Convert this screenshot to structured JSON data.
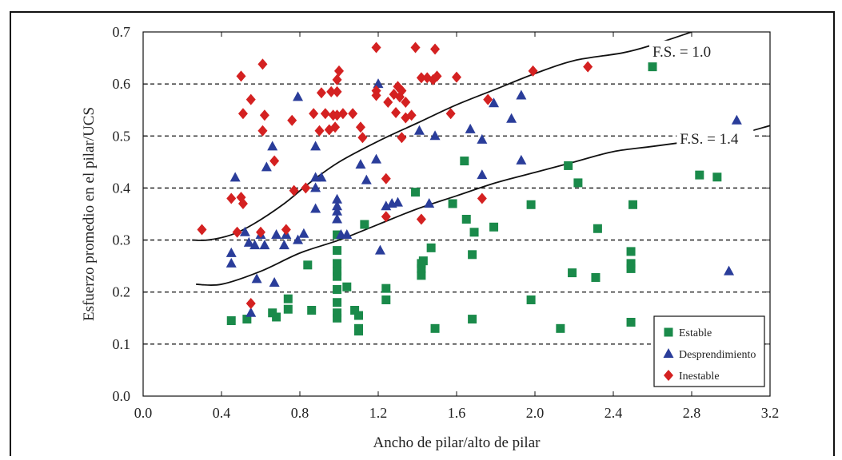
{
  "chart_data": {
    "type": "scatter",
    "xlabel": "Ancho de pilar/alto de pilar",
    "ylabel": "Esfuerzo promedio en el pilar/UCS",
    "xlim": [
      0.0,
      3.2
    ],
    "ylim": [
      0.0,
      0.7
    ],
    "xticks": [
      "0.0",
      "0.4",
      "0.8",
      "1.2",
      "1.6",
      "2.0",
      "2.4",
      "2.8",
      "3.2"
    ],
    "yticks": [
      "0.0",
      "0.1",
      "0.2",
      "0.3",
      "0.4",
      "0.5",
      "0.6",
      "0.7"
    ],
    "grid": "horizontal dashed",
    "legend_position": "bottom-right",
    "series": [
      {
        "name": "Estable",
        "marker": "square",
        "color": "#1a8a4a",
        "points": [
          [
            0.45,
            0.145
          ],
          [
            0.53,
            0.148
          ],
          [
            0.66,
            0.16
          ],
          [
            0.68,
            0.152
          ],
          [
            0.74,
            0.187
          ],
          [
            0.74,
            0.167
          ],
          [
            0.86,
            0.165
          ],
          [
            0.84,
            0.252
          ],
          [
            0.99,
            0.15
          ],
          [
            0.99,
            0.16
          ],
          [
            0.99,
            0.18
          ],
          [
            0.99,
            0.205
          ],
          [
            0.99,
            0.23
          ],
          [
            0.99,
            0.24
          ],
          [
            0.99,
            0.255
          ],
          [
            0.99,
            0.28
          ],
          [
            0.99,
            0.31
          ],
          [
            1.04,
            0.21
          ],
          [
            1.08,
            0.165
          ],
          [
            1.1,
            0.155
          ],
          [
            1.1,
            0.13
          ],
          [
            1.1,
            0.125
          ],
          [
            1.13,
            0.33
          ],
          [
            1.24,
            0.185
          ],
          [
            1.24,
            0.207
          ],
          [
            1.39,
            0.392
          ],
          [
            1.42,
            0.232
          ],
          [
            1.42,
            0.245
          ],
          [
            1.42,
            0.255
          ],
          [
            1.43,
            0.26
          ],
          [
            1.47,
            0.285
          ],
          [
            1.49,
            0.13
          ],
          [
            1.58,
            0.37
          ],
          [
            1.64,
            0.452
          ],
          [
            1.65,
            0.34
          ],
          [
            1.68,
            0.272
          ],
          [
            1.68,
            0.148
          ],
          [
            1.69,
            0.315
          ],
          [
            1.79,
            0.325
          ],
          [
            1.98,
            0.368
          ],
          [
            1.98,
            0.185
          ],
          [
            2.13,
            0.13
          ],
          [
            2.17,
            0.443
          ],
          [
            2.19,
            0.237
          ],
          [
            2.22,
            0.41
          ],
          [
            2.31,
            0.228
          ],
          [
            2.32,
            0.322
          ],
          [
            2.49,
            0.142
          ],
          [
            2.49,
            0.245
          ],
          [
            2.49,
            0.255
          ],
          [
            2.49,
            0.278
          ],
          [
            2.5,
            0.368
          ],
          [
            2.6,
            0.633
          ],
          [
            2.84,
            0.425
          ],
          [
            2.93,
            0.421
          ]
        ]
      },
      {
        "name": "Desprendimiento",
        "marker": "triangle",
        "color": "#2a3d9a",
        "points": [
          [
            0.45,
            0.255
          ],
          [
            0.45,
            0.275
          ],
          [
            0.47,
            0.42
          ],
          [
            0.52,
            0.315
          ],
          [
            0.54,
            0.295
          ],
          [
            0.55,
            0.16
          ],
          [
            0.57,
            0.29
          ],
          [
            0.58,
            0.225
          ],
          [
            0.6,
            0.31
          ],
          [
            0.62,
            0.29
          ],
          [
            0.63,
            0.44
          ],
          [
            0.66,
            0.48
          ],
          [
            0.67,
            0.218
          ],
          [
            0.68,
            0.31
          ],
          [
            0.72,
            0.29
          ],
          [
            0.73,
            0.31
          ],
          [
            0.79,
            0.3
          ],
          [
            0.79,
            0.575
          ],
          [
            0.82,
            0.312
          ],
          [
            0.88,
            0.36
          ],
          [
            0.88,
            0.4
          ],
          [
            0.88,
            0.42
          ],
          [
            0.88,
            0.48
          ],
          [
            0.91,
            0.42
          ],
          [
            0.99,
            0.34
          ],
          [
            0.99,
            0.355
          ],
          [
            0.99,
            0.365
          ],
          [
            0.99,
            0.378
          ],
          [
            1.01,
            0.31
          ],
          [
            1.04,
            0.31
          ],
          [
            1.11,
            0.445
          ],
          [
            1.14,
            0.415
          ],
          [
            1.19,
            0.455
          ],
          [
            1.2,
            0.6
          ],
          [
            1.21,
            0.28
          ],
          [
            1.24,
            0.365
          ],
          [
            1.27,
            0.37
          ],
          [
            1.3,
            0.372
          ],
          [
            1.41,
            0.51
          ],
          [
            1.46,
            0.37
          ],
          [
            1.49,
            0.5
          ],
          [
            1.67,
            0.513
          ],
          [
            1.73,
            0.425
          ],
          [
            1.73,
            0.493
          ],
          [
            1.79,
            0.563
          ],
          [
            1.88,
            0.533
          ],
          [
            1.93,
            0.578
          ],
          [
            1.93,
            0.453
          ],
          [
            2.99,
            0.24
          ],
          [
            3.03,
            0.53
          ]
        ]
      },
      {
        "name": "Inestable",
        "marker": "diamond",
        "color": "#d42121",
        "points": [
          [
            0.3,
            0.32
          ],
          [
            0.45,
            0.38
          ],
          [
            0.48,
            0.315
          ],
          [
            0.5,
            0.382
          ],
          [
            0.51,
            0.37
          ],
          [
            0.5,
            0.615
          ],
          [
            0.51,
            0.543
          ],
          [
            0.55,
            0.57
          ],
          [
            0.55,
            0.178
          ],
          [
            0.6,
            0.315
          ],
          [
            0.61,
            0.638
          ],
          [
            0.61,
            0.51
          ],
          [
            0.62,
            0.54
          ],
          [
            0.67,
            0.452
          ],
          [
            0.73,
            0.32
          ],
          [
            0.76,
            0.53
          ],
          [
            0.77,
            0.395
          ],
          [
            0.83,
            0.4
          ],
          [
            0.87,
            0.543
          ],
          [
            0.9,
            0.51
          ],
          [
            0.91,
            0.583
          ],
          [
            0.93,
            0.543
          ],
          [
            0.95,
            0.512
          ],
          [
            0.96,
            0.585
          ],
          [
            0.97,
            0.54
          ],
          [
            0.98,
            0.517
          ],
          [
            0.99,
            0.585
          ],
          [
            0.99,
            0.608
          ],
          [
            1.0,
            0.625
          ],
          [
            0.99,
            0.54
          ],
          [
            1.02,
            0.543
          ],
          [
            1.07,
            0.543
          ],
          [
            1.11,
            0.517
          ],
          [
            1.12,
            0.497
          ],
          [
            1.19,
            0.578
          ],
          [
            1.19,
            0.67
          ],
          [
            1.19,
            0.587
          ],
          [
            1.24,
            0.418
          ],
          [
            1.24,
            0.345
          ],
          [
            1.25,
            0.565
          ],
          [
            1.28,
            0.58
          ],
          [
            1.29,
            0.545
          ],
          [
            1.3,
            0.595
          ],
          [
            1.31,
            0.575
          ],
          [
            1.32,
            0.587
          ],
          [
            1.34,
            0.535
          ],
          [
            1.34,
            0.565
          ],
          [
            1.32,
            0.497
          ],
          [
            1.37,
            0.54
          ],
          [
            1.39,
            0.67
          ],
          [
            1.42,
            0.612
          ],
          [
            1.42,
            0.34
          ],
          [
            1.45,
            0.612
          ],
          [
            1.48,
            0.608
          ],
          [
            1.49,
            0.667
          ],
          [
            1.5,
            0.615
          ],
          [
            1.57,
            0.543
          ],
          [
            1.6,
            0.613
          ],
          [
            1.73,
            0.38
          ],
          [
            1.76,
            0.57
          ],
          [
            1.99,
            0.625
          ],
          [
            2.27,
            0.633
          ]
        ]
      }
    ],
    "curves": [
      {
        "label": "F.S. = 1.0",
        "points": [
          [
            0.25,
            0.3
          ],
          [
            0.33,
            0.3
          ],
          [
            0.45,
            0.31
          ],
          [
            0.56,
            0.33
          ],
          [
            0.72,
            0.37
          ],
          [
            0.85,
            0.41
          ],
          [
            1.0,
            0.45
          ],
          [
            1.2,
            0.49
          ],
          [
            1.4,
            0.525
          ],
          [
            1.6,
            0.56
          ],
          [
            1.8,
            0.59
          ],
          [
            2.0,
            0.62
          ],
          [
            2.2,
            0.645
          ],
          [
            2.45,
            0.66
          ],
          [
            2.6,
            0.675
          ],
          [
            2.8,
            0.7
          ]
        ]
      },
      {
        "label": "F.S. = 1.4",
        "points": [
          [
            0.27,
            0.215
          ],
          [
            0.4,
            0.215
          ],
          [
            0.6,
            0.24
          ],
          [
            0.8,
            0.275
          ],
          [
            1.0,
            0.3
          ],
          [
            1.2,
            0.33
          ],
          [
            1.4,
            0.36
          ],
          [
            1.6,
            0.385
          ],
          [
            1.8,
            0.41
          ],
          [
            2.0,
            0.43
          ],
          [
            2.2,
            0.45
          ],
          [
            2.4,
            0.47
          ],
          [
            2.6,
            0.48
          ],
          [
            2.8,
            0.49
          ],
          [
            3.0,
            0.5
          ],
          [
            3.2,
            0.52
          ]
        ]
      }
    ]
  }
}
